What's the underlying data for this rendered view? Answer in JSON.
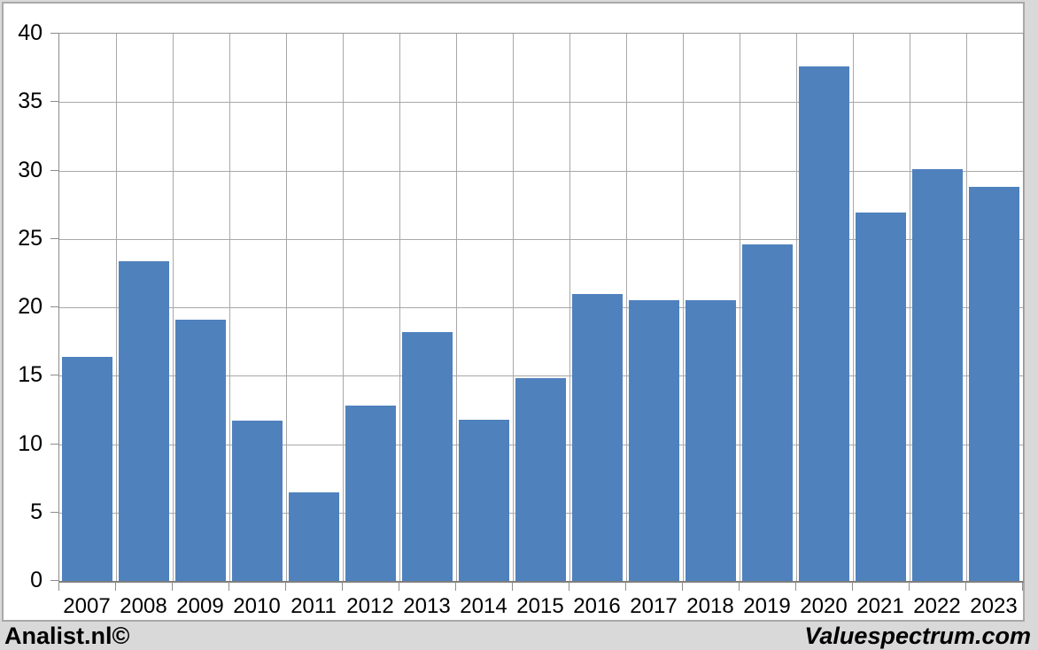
{
  "footer": {
    "left_brand": "Analist.nl©",
    "right_brand": "Valuespectrum.com"
  },
  "colors": {
    "bar": "#4f81bd",
    "gridline": "#a8a8a8",
    "axis": "#8c8c8c",
    "panel_border": "#a9a9a9",
    "page_background": "#d9d9d9",
    "plot_background": "#ffffff",
    "text": "#000000"
  },
  "chart_data": {
    "type": "bar",
    "title": "",
    "xlabel": "",
    "ylabel": "",
    "categories": [
      "2007",
      "2008",
      "2009",
      "2010",
      "2011",
      "2012",
      "2013",
      "2014",
      "2015",
      "2016",
      "2017",
      "2018",
      "2019",
      "2020",
      "2021",
      "2022",
      "2023"
    ],
    "values": [
      16.4,
      23.4,
      19.1,
      11.7,
      6.5,
      12.8,
      18.2,
      11.8,
      14.8,
      21.0,
      20.5,
      20.5,
      24.6,
      37.6,
      26.9,
      30.1,
      28.8
    ],
    "ylim": [
      0,
      40
    ],
    "ytick_step": 5,
    "ytick_labels": [
      "0",
      "5",
      "10",
      "15",
      "20",
      "25",
      "30",
      "35",
      "40"
    ],
    "grid": true,
    "legend": false,
    "bar_color": "#4f81bd"
  }
}
